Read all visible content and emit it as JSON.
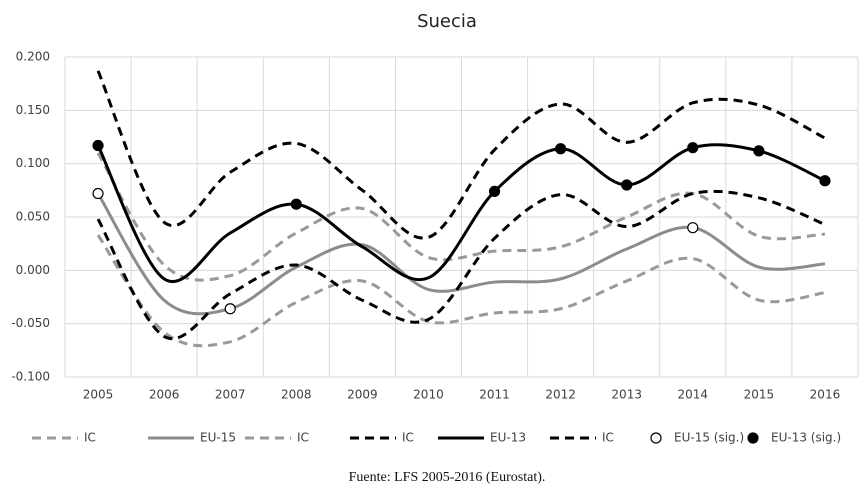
{
  "chart_data": {
    "type": "line",
    "title": "Suecia",
    "source": "Fuente: LFS 2005-2016 (Eurostat).",
    "categories": [
      "2005",
      "2006",
      "2007",
      "2008",
      "2009",
      "2010",
      "2011",
      "2012",
      "2013",
      "2014",
      "2015",
      "2016"
    ],
    "ylim": [
      -0.1,
      0.2
    ],
    "yticks": [
      {
        "value": -0.1,
        "label": "-0.100"
      },
      {
        "value": -0.05,
        "label": "-0.050"
      },
      {
        "value": 0,
        "label": "0.000"
      },
      {
        "value": 0.05,
        "label": "0.050"
      },
      {
        "value": 0.1,
        "label": "0.100"
      },
      {
        "value": 0.15,
        "label": "0.150"
      },
      {
        "value": 0.2,
        "label": "0.200"
      }
    ],
    "grid": true,
    "smooth": true,
    "legend": "bottom",
    "series": [
      {
        "name": "IC",
        "color": "#999999",
        "style": "dashed",
        "values": [
          0.11,
          0.005,
          -0.005,
          0.035,
          0.058,
          0.012,
          0.018,
          0.022,
          0.05,
          0.072,
          0.032,
          0.034
        ]
      },
      {
        "name": "EU-15",
        "color": "#8c8c8c",
        "style": "solid",
        "values": [
          0.072,
          -0.028,
          -0.036,
          0.003,
          0.024,
          -0.018,
          -0.011,
          -0.008,
          0.02,
          0.04,
          0.003,
          0.006
        ]
      },
      {
        "name": "IC",
        "color": "#999999",
        "style": "dashed",
        "values": [
          0.033,
          -0.058,
          -0.067,
          -0.03,
          -0.01,
          -0.048,
          -0.04,
          -0.036,
          -0.01,
          0.011,
          -0.028,
          -0.021
        ]
      },
      {
        "name": "IC",
        "color": "#000000",
        "style": "dashed",
        "values": [
          0.187,
          0.045,
          0.092,
          0.119,
          0.075,
          0.031,
          0.113,
          0.156,
          0.12,
          0.157,
          0.155,
          0.124
        ]
      },
      {
        "name": "EU-13",
        "color": "#000000",
        "style": "solid",
        "values": [
          0.117,
          -0.008,
          0.035,
          0.062,
          0.022,
          -0.007,
          0.074,
          0.114,
          0.08,
          0.115,
          0.112,
          0.084
        ]
      },
      {
        "name": "IC",
        "color": "#000000",
        "style": "dashed",
        "values": [
          0.048,
          -0.062,
          -0.022,
          0.005,
          -0.028,
          -0.046,
          0.03,
          0.071,
          0.041,
          0.072,
          0.068,
          0.043
        ]
      },
      {
        "name": "EU-15 (sig.)",
        "color": "#000000",
        "style": "marker-open",
        "values": [
          0.072,
          null,
          -0.036,
          null,
          null,
          null,
          null,
          null,
          null,
          0.04,
          null,
          null
        ]
      },
      {
        "name": "EU-13 (sig.)",
        "color": "#000000",
        "style": "marker-filled",
        "values": [
          0.117,
          null,
          null,
          0.062,
          null,
          null,
          0.074,
          0.114,
          0.08,
          0.115,
          0.112,
          0.084
        ]
      }
    ]
  }
}
